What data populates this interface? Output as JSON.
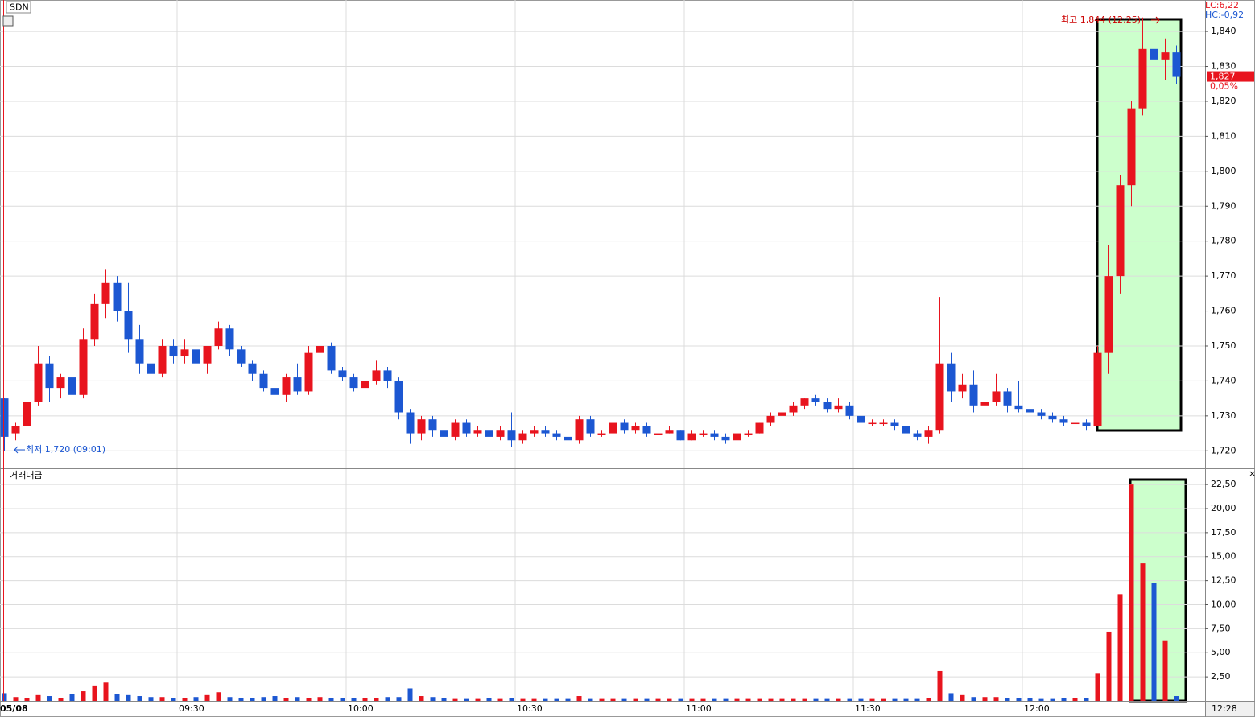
{
  "chart_data": [
    {
      "type": "candlestick",
      "title": "SDN",
      "up_color": "#e8141e",
      "down_color": "#1c57d2",
      "categories": [
        "05/08",
        null,
        null,
        null,
        null,
        null,
        null,
        null,
        null,
        null,
        null,
        null,
        null,
        null,
        null,
        "09:30",
        null,
        null,
        null,
        null,
        null,
        null,
        null,
        null,
        null,
        null,
        null,
        null,
        null,
        null,
        "10:00",
        null,
        null,
        null,
        null,
        null,
        null,
        null,
        null,
        null,
        null,
        null,
        null,
        null,
        null,
        "10:30",
        null,
        null,
        null,
        null,
        null,
        null,
        null,
        null,
        null,
        null,
        null,
        null,
        null,
        null,
        "11:00",
        null,
        null,
        null,
        null,
        null,
        null,
        null,
        null,
        null,
        null,
        null,
        null,
        null,
        null,
        "11:30",
        null,
        null,
        null,
        null,
        null,
        null,
        null,
        null,
        null,
        null,
        null,
        null,
        null,
        null,
        "12:00",
        null,
        null,
        null,
        null,
        null,
        null,
        null,
        null,
        null,
        null,
        null,
        null,
        null,
        "12:28"
      ],
      "candles": [
        [
          1735,
          1735,
          1720,
          1724
        ],
        [
          1725,
          1728,
          1723,
          1727
        ],
        [
          1727,
          1736,
          1726,
          1734
        ],
        [
          1734,
          1750,
          1733,
          1745
        ],
        [
          1745,
          1747,
          1734,
          1738
        ],
        [
          1738,
          1742,
          1735,
          1741
        ],
        [
          1741,
          1745,
          1733,
          1736
        ],
        [
          1736,
          1755,
          1735,
          1752
        ],
        [
          1752,
          1765,
          1750,
          1762
        ],
        [
          1762,
          1772,
          1758,
          1768
        ],
        [
          1768,
          1770,
          1757,
          1760
        ],
        [
          1760,
          1768,
          1748,
          1752
        ],
        [
          1752,
          1756,
          1742,
          1745
        ],
        [
          1745,
          1750,
          1740,
          1742
        ],
        [
          1742,
          1752,
          1741,
          1750
        ],
        [
          1750,
          1752,
          1745,
          1747
        ],
        [
          1747,
          1752,
          1745,
          1749
        ],
        [
          1749,
          1751,
          1743,
          1745
        ],
        [
          1745,
          1750,
          1742,
          1750
        ],
        [
          1750,
          1757,
          1749,
          1755
        ],
        [
          1755,
          1756,
          1747,
          1749
        ],
        [
          1749,
          1750,
          1744,
          1745
        ],
        [
          1745,
          1746,
          1740,
          1742
        ],
        [
          1742,
          1743,
          1737,
          1738
        ],
        [
          1738,
          1740,
          1735,
          1736
        ],
        [
          1736,
          1742,
          1734,
          1741
        ],
        [
          1741,
          1745,
          1736,
          1737
        ],
        [
          1737,
          1750,
          1736,
          1748
        ],
        [
          1748,
          1753,
          1745,
          1750
        ],
        [
          1750,
          1751,
          1742,
          1743
        ],
        [
          1743,
          1744,
          1740,
          1741
        ],
        [
          1741,
          1742,
          1737,
          1738
        ],
        [
          1738,
          1741,
          1737,
          1740
        ],
        [
          1740,
          1746,
          1739,
          1743
        ],
        [
          1743,
          1744,
          1738,
          1740
        ],
        [
          1740,
          1741,
          1729,
          1731
        ],
        [
          1731,
          1732,
          1722,
          1725
        ],
        [
          1725,
          1730,
          1723,
          1729
        ],
        [
          1729,
          1730,
          1724,
          1726
        ],
        [
          1726,
          1728,
          1723,
          1724
        ],
        [
          1724,
          1729,
          1723,
          1728
        ],
        [
          1728,
          1729,
          1724,
          1725
        ],
        [
          1725,
          1727,
          1724,
          1726
        ],
        [
          1726,
          1727,
          1723,
          1724
        ],
        [
          1724,
          1727,
          1723,
          1726
        ],
        [
          1726,
          1731,
          1721,
          1723
        ],
        [
          1723,
          1726,
          1722,
          1725
        ],
        [
          1725,
          1727,
          1724,
          1726
        ],
        [
          1726,
          1727,
          1724,
          1725
        ],
        [
          1725,
          1726,
          1723,
          1724
        ],
        [
          1724,
          1725,
          1722,
          1723
        ],
        [
          1723,
          1730,
          1722,
          1729
        ],
        [
          1729,
          1730,
          1724,
          1725
        ],
        [
          1725,
          1726,
          1724,
          1725
        ],
        [
          1725,
          1729,
          1724,
          1728
        ],
        [
          1728,
          1729,
          1725,
          1726
        ],
        [
          1726,
          1728,
          1725,
          1727
        ],
        [
          1727,
          1728,
          1724,
          1725
        ],
        [
          1725,
          1726,
          1723,
          1725
        ],
        [
          1725,
          1727,
          1725,
          1726
        ],
        [
          1726,
          1726,
          1723,
          1723
        ],
        [
          1723,
          1726,
          1723,
          1725
        ],
        [
          1725,
          1726,
          1724,
          1725
        ],
        [
          1725,
          1726,
          1723,
          1724
        ],
        [
          1724,
          1725,
          1722,
          1723
        ],
        [
          1723,
          1725,
          1723,
          1725
        ],
        [
          1725,
          1726,
          1724,
          1725
        ],
        [
          1725,
          1728,
          1725,
          1728
        ],
        [
          1728,
          1731,
          1727,
          1730
        ],
        [
          1730,
          1732,
          1729,
          1731
        ],
        [
          1731,
          1734,
          1730,
          1733
        ],
        [
          1733,
          1735,
          1732,
          1735
        ],
        [
          1735,
          1736,
          1733,
          1734
        ],
        [
          1734,
          1735,
          1731,
          1732
        ],
        [
          1732,
          1735,
          1731,
          1733
        ],
        [
          1733,
          1734,
          1729,
          1730
        ],
        [
          1730,
          1731,
          1727,
          1728
        ],
        [
          1728,
          1729,
          1727,
          1728
        ],
        [
          1728,
          1729,
          1727,
          1728
        ],
        [
          1728,
          1729,
          1726,
          1727
        ],
        [
          1727,
          1730,
          1724,
          1725
        ],
        [
          1725,
          1726,
          1723,
          1724
        ],
        [
          1724,
          1727,
          1722,
          1726
        ],
        [
          1726,
          1764,
          1725,
          1745
        ],
        [
          1745,
          1748,
          1734,
          1737
        ],
        [
          1737,
          1742,
          1735,
          1739
        ],
        [
          1739,
          1743,
          1731,
          1733
        ],
        [
          1733,
          1736,
          1731,
          1734
        ],
        [
          1734,
          1742,
          1733,
          1737
        ],
        [
          1737,
          1738,
          1731,
          1733
        ],
        [
          1733,
          1740,
          1731,
          1732
        ],
        [
          1732,
          1735,
          1730,
          1731
        ],
        [
          1731,
          1732,
          1729,
          1730
        ],
        [
          1730,
          1731,
          1728,
          1729
        ],
        [
          1729,
          1730,
          1727,
          1728
        ],
        [
          1728,
          1729,
          1727,
          1728
        ],
        [
          1728,
          1729,
          1726,
          1727
        ],
        [
          1727,
          1750,
          1727,
          1748
        ],
        [
          1748,
          1779,
          1742,
          1770
        ],
        [
          1770,
          1799,
          1765,
          1796
        ],
        [
          1796,
          1820,
          1790,
          1818
        ],
        [
          1818,
          1844,
          1816,
          1835
        ],
        [
          1835,
          1844,
          1817,
          1832
        ],
        [
          1832,
          1838,
          1826,
          1834
        ],
        [
          1834,
          1836,
          1825,
          1827
        ]
      ],
      "ylim": [
        1715,
        1849
      ],
      "yticks": [
        {
          "value": 1720,
          "label": "1,720"
        },
        {
          "value": 1730,
          "label": "1,730"
        },
        {
          "value": 1740,
          "label": "1,740"
        },
        {
          "value": 1750,
          "label": "1,750"
        },
        {
          "value": 1760,
          "label": "1,760"
        },
        {
          "value": 1770,
          "label": "1,770"
        },
        {
          "value": 1780,
          "label": "1,780"
        },
        {
          "value": 1790,
          "label": "1,790"
        },
        {
          "value": 1800,
          "label": "1,800"
        },
        {
          "value": 1810,
          "label": "1,810"
        },
        {
          "value": 1820,
          "label": "1,820"
        },
        {
          "value": 1830,
          "label": "1,830"
        },
        {
          "value": 1840,
          "label": "1,840"
        }
      ],
      "grid": true,
      "last_price": {
        "value": 1827,
        "label": "1,827"
      },
      "change": "0,05%",
      "lc": "LC:6,22",
      "hc": "HC:-0,92",
      "high_annotation": "최고 1,844 (12:25)",
      "low_annotation": "최저 1,720 (09:01)"
    },
    {
      "type": "bar",
      "title": "거래대금",
      "values": [
        0.8,
        0.4,
        0.3,
        0.6,
        0.5,
        0.3,
        0.7,
        1.0,
        1.6,
        1.9,
        0.7,
        0.6,
        0.5,
        0.4,
        0.4,
        0.3,
        0.3,
        0.4,
        0.6,
        0.9,
        0.4,
        0.3,
        0.3,
        0.4,
        0.5,
        0.3,
        0.4,
        0.3,
        0.4,
        0.3,
        0.3,
        0.3,
        0.3,
        0.3,
        0.4,
        0.4,
        1.3,
        0.5,
        0.4,
        0.3,
        0.2,
        0.2,
        0.2,
        0.3,
        0.2,
        0.3,
        0.2,
        0.2,
        0.2,
        0.2,
        0.2,
        0.5,
        0.2,
        0.2,
        0.2,
        0.2,
        0.2,
        0.2,
        0.2,
        0.2,
        0.2,
        0.2,
        0.2,
        0.2,
        0.2,
        0.2,
        0.2,
        0.2,
        0.2,
        0.2,
        0.2,
        0.2,
        0.2,
        0.2,
        0.2,
        0.2,
        0.2,
        0.2,
        0.2,
        0.2,
        0.2,
        0.2,
        0.3,
        3.1,
        0.8,
        0.6,
        0.4,
        0.4,
        0.4,
        0.3,
        0.3,
        0.3,
        0.2,
        0.2,
        0.3,
        0.3,
        0.3,
        2.9,
        7.2,
        11.1,
        22.5,
        14.3,
        12.3,
        6.3,
        0.5
      ],
      "ylim": [
        0,
        24.1
      ],
      "yticks": [
        {
          "value": 2.5,
          "label": "2,50"
        },
        {
          "value": 5,
          "label": "5,00"
        },
        {
          "value": 7.5,
          "label": "7,50"
        },
        {
          "value": 10,
          "label": "10,00"
        },
        {
          "value": 12.5,
          "label": "12,50"
        },
        {
          "value": 15,
          "label": "15,00"
        },
        {
          "value": 17.5,
          "label": "17,50"
        },
        {
          "value": 20,
          "label": "20,00"
        },
        {
          "value": 22.5,
          "label": "22,50"
        }
      ],
      "grid": true
    }
  ]
}
